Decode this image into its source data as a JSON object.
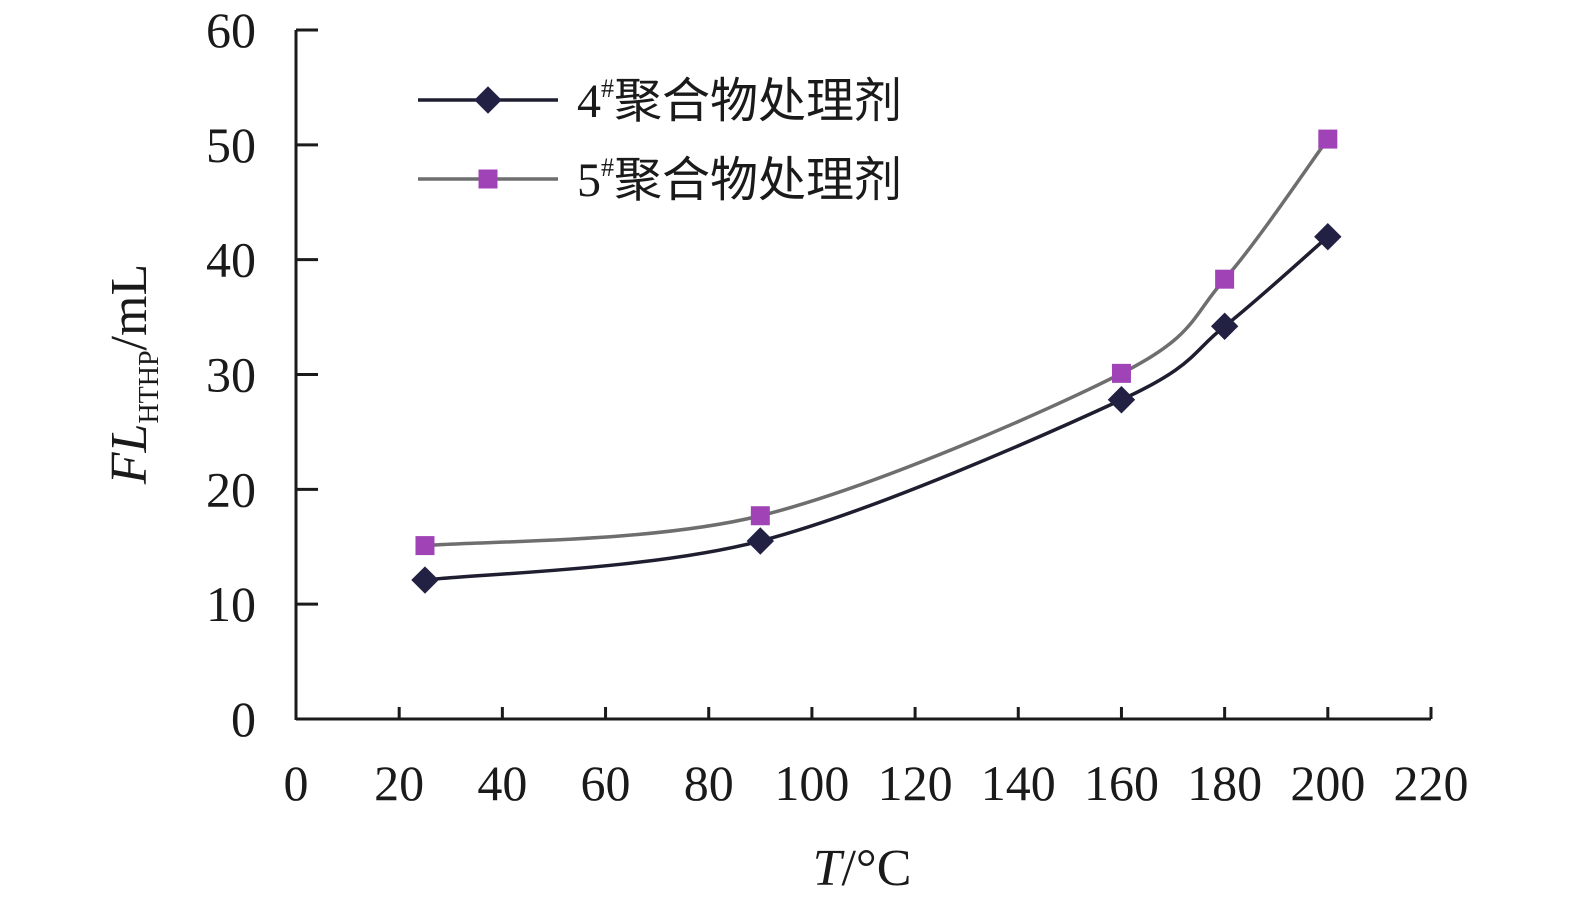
{
  "chart_data": {
    "type": "line",
    "title": "",
    "xlabel": "T/°C",
    "ylabel": "FLHTHP/mL",
    "xlabel_parts": {
      "italic": "T",
      "rest": "/°C"
    },
    "ylabel_parts": {
      "italic": "FL",
      "sub": "HTHP",
      "rest": "/mL"
    },
    "xlim": [
      0,
      220
    ],
    "ylim": [
      0,
      60
    ],
    "x_ticks": [
      "0",
      "20",
      "40",
      "60",
      "80",
      "100",
      "120",
      "140",
      "160",
      "180",
      "200",
      "220"
    ],
    "y_ticks": [
      "0",
      "10",
      "20",
      "30",
      "40",
      "50",
      "60"
    ],
    "grid": false,
    "legend_position": "top-left",
    "series": [
      {
        "name": "4#聚合物处理剂",
        "name_parts": {
          "num": "4",
          "sup": "#",
          "text": "聚合物处理剂"
        },
        "marker": "diamond",
        "color": "#222144",
        "line_color": "#1e1e30",
        "x": [
          25,
          90,
          160,
          180,
          200
        ],
        "y": [
          12.1,
          15.5,
          27.8,
          34.2,
          42.0
        ]
      },
      {
        "name": "5#聚合物处理剂",
        "name_parts": {
          "num": "5",
          "sup": "#",
          "text": "聚合物处理剂"
        },
        "marker": "square",
        "color": "#a043b7",
        "line_color": "#6e6e6e",
        "x": [
          25,
          90,
          160,
          180,
          200
        ],
        "y": [
          15.1,
          17.7,
          30.1,
          38.3,
          50.5
        ]
      }
    ]
  }
}
